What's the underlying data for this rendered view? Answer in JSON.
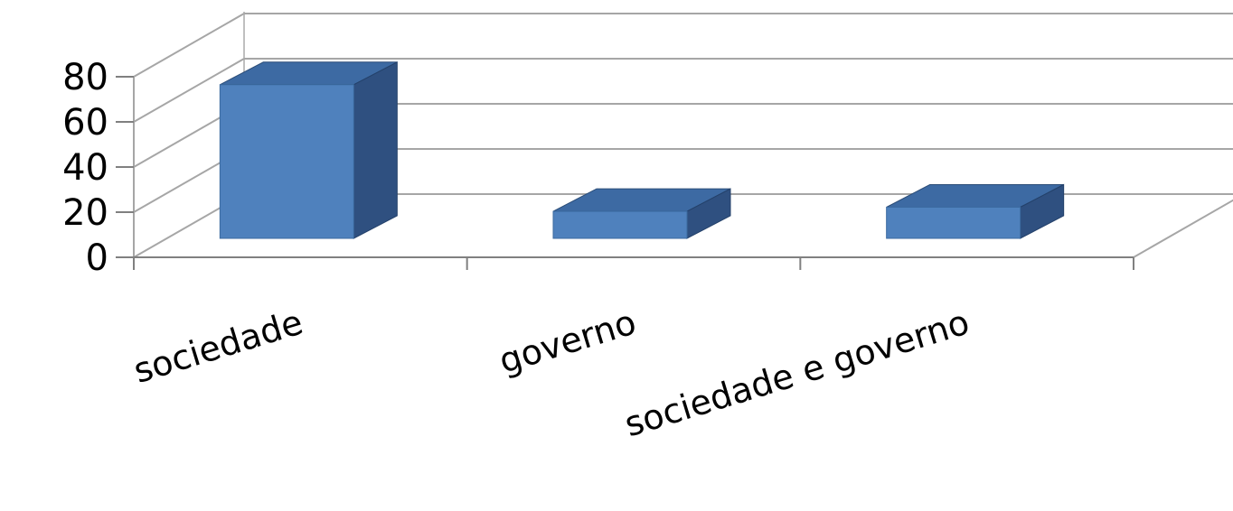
{
  "chart_data": {
    "type": "bar",
    "categories": [
      "sociedade",
      "governo",
      "sociedade e governo"
    ],
    "values": [
      74,
      13,
      15
    ],
    "ylim": [
      0,
      80
    ],
    "yticks": [
      0,
      20,
      40,
      60,
      80
    ],
    "grid": true,
    "legend": "none",
    "three_d": true,
    "colors": {
      "front": "#4f81bd",
      "top": "#3d6aa3",
      "side": "#2f5080"
    }
  }
}
